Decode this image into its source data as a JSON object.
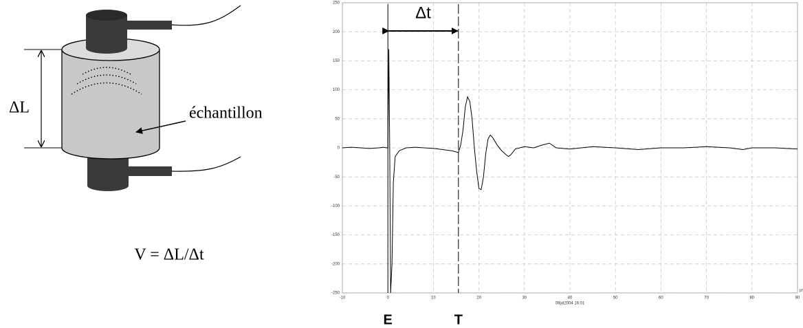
{
  "diagram": {
    "length_label": "ΔL",
    "sample_label": "échantillon",
    "formula": "V = ΔL/Δt"
  },
  "chart_data": {
    "type": "line",
    "x": [
      -10,
      -8,
      -6,
      -4,
      -2,
      -1,
      -0.3,
      0,
      0.2,
      0.4,
      0.6,
      0.9,
      1.2,
      1.6,
      2.5,
      4,
      6,
      8,
      10,
      12,
      14,
      15.5,
      16,
      16.5,
      17,
      17.5,
      18,
      18.5,
      19,
      19.5,
      20,
      20.5,
      21,
      21.5,
      22,
      22.5,
      23,
      24,
      25,
      26,
      26.5,
      27,
      28,
      30,
      32,
      34,
      35.5,
      37,
      40,
      45,
      50,
      55,
      60,
      65,
      70,
      75,
      78,
      80,
      85,
      90
    ],
    "values": [
      0,
      1,
      0,
      -1,
      0,
      1,
      0,
      0,
      170,
      0,
      -250,
      -200,
      -60,
      -15,
      -5,
      0,
      1,
      0,
      -1,
      -3,
      -5,
      -8,
      5,
      30,
      70,
      88,
      80,
      50,
      0,
      -40,
      -70,
      -72,
      -50,
      -10,
      15,
      22,
      18,
      5,
      -5,
      -12,
      -15,
      -12,
      -2,
      2,
      0,
      5,
      8,
      0,
      -2,
      2,
      0,
      -3,
      0,
      0,
      2,
      0,
      -3,
      0,
      0,
      -2
    ],
    "color": "#000000",
    "xlim": [
      -10,
      90
    ],
    "ylim": [
      -250,
      250
    ],
    "xticks": [
      -10,
      0,
      10,
      20,
      30,
      40,
      50,
      60,
      70,
      80,
      90
    ],
    "yticks": [
      -250,
      -200,
      -150,
      -100,
      -50,
      0,
      50,
      100,
      150,
      200,
      250
    ],
    "grid": true,
    "x_unit": "µs",
    "timestamp": "09jul2004 16:01",
    "markers": [
      {
        "x": 0,
        "label": "E"
      },
      {
        "x": 15.5,
        "label": "T"
      }
    ],
    "annotation": "Δt"
  }
}
